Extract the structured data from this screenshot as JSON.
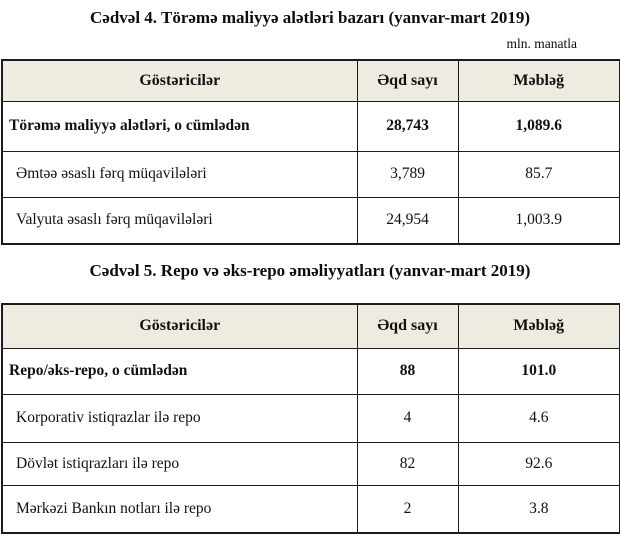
{
  "colors": {
    "header_bg": "#eeece1",
    "border": "#1c1c1c",
    "text": "#111111"
  },
  "tables": [
    {
      "title": "Cədvəl 4. Törəmə maliyyə alətləri bazarı (yanvar-mart 2019)",
      "unit_note": "mln. manatla",
      "columns": [
        "Göstəricilər",
        "Əqd sayı",
        "Məbləğ"
      ],
      "rows": [
        {
          "label": "Törəmə maliyyə alətləri, o cümlədən",
          "deals": "28,743",
          "amount": "1,089.6",
          "bold": true
        },
        {
          "label": "Əmtəə əsaslı fərq müqavilələri",
          "deals": "3,789",
          "amount": "85.7",
          "bold": false
        },
        {
          "label": "Valyuta əsaslı fərq müqavilələri",
          "deals": "24,954",
          "amount": "1,003.9",
          "bold": false
        }
      ]
    },
    {
      "title": "Cədvəl 5. Repo və əks-repo əməliyyatları (yanvar-mart 2019)",
      "columns": [
        "Göstəricilər",
        "Əqd sayı",
        "Məbləğ"
      ],
      "rows": [
        {
          "label": "Repo/əks-repo, o cümlədən",
          "deals": "88",
          "amount": "101.0",
          "bold": true
        },
        {
          "label": "Korporativ istiqrazlar ilə repo",
          "deals": "4",
          "amount": "4.6",
          "bold": false
        },
        {
          "label": "Dövlət istiqrazları ilə repo",
          "deals": "82",
          "amount": "92.6",
          "bold": false
        },
        {
          "label": "Mərkəzi Bankın notları ilə repo",
          "deals": "2",
          "amount": "3.8",
          "bold": false
        }
      ]
    }
  ]
}
